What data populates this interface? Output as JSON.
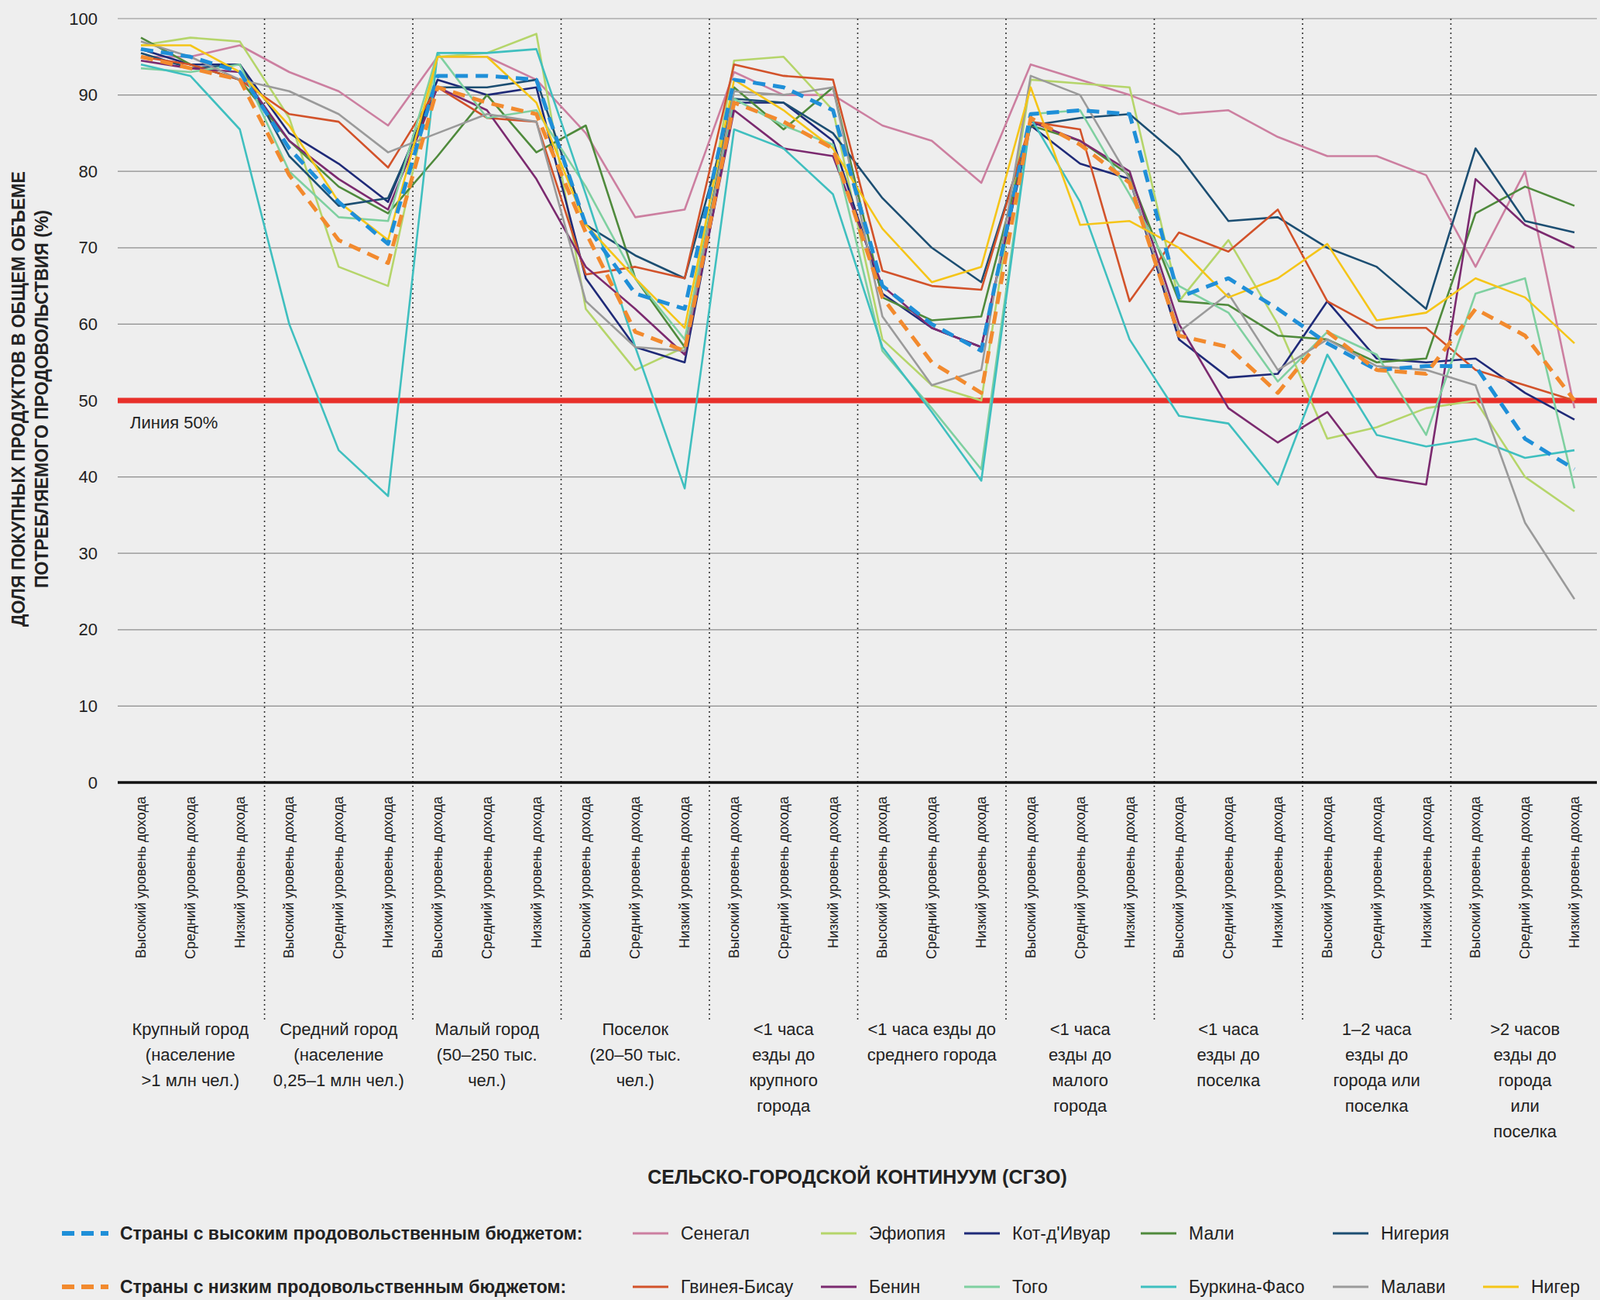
{
  "chart_data": {
    "type": "line",
    "y_label": [
      "ДОЛЯ ПОКУПНЫХ ПРОДУКТОВ В ОБЩЕМ ОБЪЕМЕ",
      "ПОТРЕБЛЯЕМОГО ПРОДОВОЛЬСТВИЯ (%)"
    ],
    "x_label": "СЕЛЬСКО-ГОРОДСКОЙ КОНТИНУУМ (СГЗО)",
    "ylim": [
      0,
      100
    ],
    "yticks": [
      0,
      10,
      20,
      30,
      40,
      50,
      60,
      70,
      80,
      90,
      100
    ],
    "grid": true,
    "annotations": [
      {
        "text": "Линия 50%",
        "y": 50,
        "color": "#e8302a"
      }
    ],
    "categories": [
      "Высокий уровень дохода",
      "Средний уровень дохода",
      "Низкий уровень дохода",
      "Высокий уровень дохода",
      "Средний уровень дохода",
      "Низкий уровень дохода",
      "Высокий уровень дохода",
      "Средний уровень дохода",
      "Низкий уровень дохода",
      "Высокий уровень дохода",
      "Средний уровень дохода",
      "Низкий уровень дохода",
      "Высокий уровень дохода",
      "Средний уровень дохода",
      "Низкий уровень дохода",
      "Высокий уровень дохода",
      "Средний уровень дохода",
      "Низкий уровень дохода",
      "Высокий уровень дохода",
      "Средний уровень дохода",
      "Низкий уровень дохода",
      "Высокий уровень дохода",
      "Средний уровень дохода",
      "Низкий уровень дохода",
      "Высокий уровень дохода",
      "Средний уровень дохода",
      "Низкий уровень дохода",
      "Высокий уровень дохода",
      "Средний уровень дохода",
      "Низкий уровень дохода"
    ],
    "category_groups": [
      [
        "Крупный город",
        "(население",
        ">1 млн чел.)"
      ],
      [
        "Средний город",
        "(население",
        "0,25–1 млн чел.)"
      ],
      [
        "Малый город",
        "(50–250 тыс.",
        "чел.)"
      ],
      [
        "Поселок",
        "(20–50 тыс.",
        "чел.)"
      ],
      [
        "<1 часа",
        "езды до",
        "крупного",
        "города"
      ],
      [
        "<1 часа езды до",
        "среднего города"
      ],
      [
        "<1 часа",
        "езды до",
        "малого",
        "города"
      ],
      [
        "<1 часа",
        "езды до",
        "поселка"
      ],
      [
        "1–2 часа",
        "езды до",
        "города или",
        "поселка"
      ],
      [
        ">2 часов",
        "езды до",
        "города",
        "или",
        "поселка"
      ]
    ],
    "series": [
      {
        "name": "Страны с высоким продовольственным бюджетом:",
        "color": "#1f8fd8",
        "line_style": "dashed",
        "values": [
          96,
          95,
          93,
          83,
          76,
          70.5,
          92.5,
          92.5,
          92,
          73,
          64,
          62,
          92,
          91,
          88,
          65,
          60,
          56.5,
          87.5,
          88,
          87.5,
          63.5,
          66,
          62,
          57.5,
          54,
          54.5,
          54.5,
          45,
          41
        ]
      },
      {
        "name": "Страны с низким продовольственным бюджетом:",
        "color": "#f28a2e",
        "line_style": "dashed",
        "values": [
          95,
          93.5,
          92,
          79.5,
          71,
          68,
          91,
          89,
          87.5,
          72,
          59,
          56.5,
          89,
          86.5,
          83,
          63.5,
          55,
          51,
          87,
          83.5,
          78.5,
          58.5,
          57,
          51,
          59,
          54,
          53.5,
          62,
          58.5,
          50
        ]
      },
      {
        "name": "Сенегал",
        "color": "#cc7fa0",
        "line_style": "solid",
        "values": [
          95,
          95,
          96.5,
          93,
          90.5,
          86,
          95,
          95,
          92,
          85,
          74,
          75,
          93,
          90,
          90,
          86,
          84,
          78.5,
          94,
          92,
          90,
          87.5,
          88,
          84.5,
          82,
          82,
          79.5,
          67.5,
          80,
          49
        ]
      },
      {
        "name": "Эфиопия",
        "color": "#b5d56a",
        "line_style": "solid",
        "values": [
          96.5,
          97.5,
          97,
          87,
          67.5,
          65,
          95,
          95.5,
          98,
          62,
          54,
          57,
          94.5,
          95,
          88,
          58,
          52,
          50,
          92,
          91.5,
          91,
          63,
          71,
          60,
          45,
          46.5,
          49,
          50,
          40,
          35.5
        ]
      },
      {
        "name": "Кот-д'Ивуар",
        "color": "#1f2a78",
        "line_style": "solid",
        "values": [
          96,
          94,
          94,
          85,
          81,
          76,
          92,
          90,
          91,
          66,
          57,
          55,
          89,
          89,
          84,
          64,
          59.5,
          57,
          86,
          81,
          79,
          58,
          53,
          53.5,
          63,
          55.5,
          55,
          55.5,
          51,
          47.5
        ]
      },
      {
        "name": "Мали",
        "color": "#4f8a3c",
        "line_style": "solid",
        "values": [
          97.5,
          94,
          92,
          84,
          78,
          74.5,
          82,
          90,
          82.5,
          86,
          66,
          57,
          91,
          85.5,
          91,
          63.5,
          60.5,
          61,
          86,
          84,
          79.5,
          63,
          62.5,
          58.5,
          58,
          55,
          55.5,
          74.5,
          78,
          75.5
        ]
      },
      {
        "name": "Нигерия",
        "color": "#1c4e72",
        "line_style": "solid",
        "values": [
          95.5,
          93.5,
          94,
          82,
          75.5,
          76.5,
          91,
          91,
          92,
          73,
          69,
          66,
          89.5,
          89,
          85,
          76.5,
          70,
          65.5,
          86,
          87,
          87.5,
          82,
          73.5,
          74,
          70,
          67.5,
          62,
          83,
          73.5,
          72
        ]
      },
      {
        "name": "Гвинея-Бисау",
        "color": "#d2522a",
        "line_style": "solid",
        "values": [
          95,
          94,
          92,
          87.5,
          86.5,
          80.5,
          91,
          87,
          86.5,
          66.5,
          67.5,
          66,
          94,
          92.5,
          92,
          67,
          65,
          64.5,
          86.5,
          85.5,
          63,
          72,
          69.5,
          75,
          63,
          59.5,
          59.5,
          54,
          52,
          50
        ]
      },
      {
        "name": "Бенин",
        "color": "#7b2a6f",
        "line_style": "solid",
        "values": [
          94.5,
          93.5,
          93,
          84,
          79,
          75,
          91,
          88,
          79,
          67.5,
          62,
          56,
          88,
          83,
          82,
          65,
          59.5,
          57,
          86.5,
          84,
          80,
          60,
          49,
          44.5,
          48.5,
          40,
          39,
          79,
          73,
          70
        ]
      },
      {
        "name": "Того",
        "color": "#7fd0a0",
        "line_style": "solid",
        "values": [
          93.5,
          93,
          94,
          80,
          74,
          73.5,
          95.5,
          87,
          88,
          78,
          66,
          58,
          89.5,
          86,
          83.5,
          56.5,
          49,
          41,
          87.5,
          88,
          77,
          65,
          61.5,
          52.5,
          59,
          56,
          45.5,
          64,
          66,
          38.5
        ]
      },
      {
        "name": "Буркина-Фасо",
        "color": "#3fbfbf",
        "line_style": "solid",
        "values": [
          94,
          92.5,
          85.5,
          60,
          43.5,
          37.5,
          95.5,
          95.5,
          96,
          77,
          57,
          38.5,
          85.5,
          83,
          77,
          57,
          48.5,
          39.5,
          87,
          76,
          58,
          48,
          47,
          39,
          56,
          45.5,
          44,
          45,
          42.5,
          43.5
        ]
      },
      {
        "name": "Малави",
        "color": "#9a9a9a",
        "line_style": "solid",
        "values": [
          97,
          95,
          92,
          90.5,
          87.5,
          82.5,
          85,
          87.5,
          86.5,
          63,
          57,
          56.5,
          90.5,
          90,
          91,
          61,
          52,
          54,
          92.5,
          90,
          79,
          59,
          64,
          54,
          58,
          54.5,
          54,
          52,
          34,
          24
        ]
      },
      {
        "name": "Нигер",
        "color": "#f5c518",
        "line_style": "solid",
        "values": [
          96.5,
          96.5,
          93,
          86,
          76,
          71,
          95,
          95,
          89,
          73,
          66,
          59.5,
          92,
          88,
          83,
          72.5,
          65.5,
          67.5,
          91,
          73,
          73.5,
          70,
          63.5,
          66,
          70.5,
          60.5,
          61.5,
          66,
          63.5,
          57.5
        ]
      }
    ]
  }
}
